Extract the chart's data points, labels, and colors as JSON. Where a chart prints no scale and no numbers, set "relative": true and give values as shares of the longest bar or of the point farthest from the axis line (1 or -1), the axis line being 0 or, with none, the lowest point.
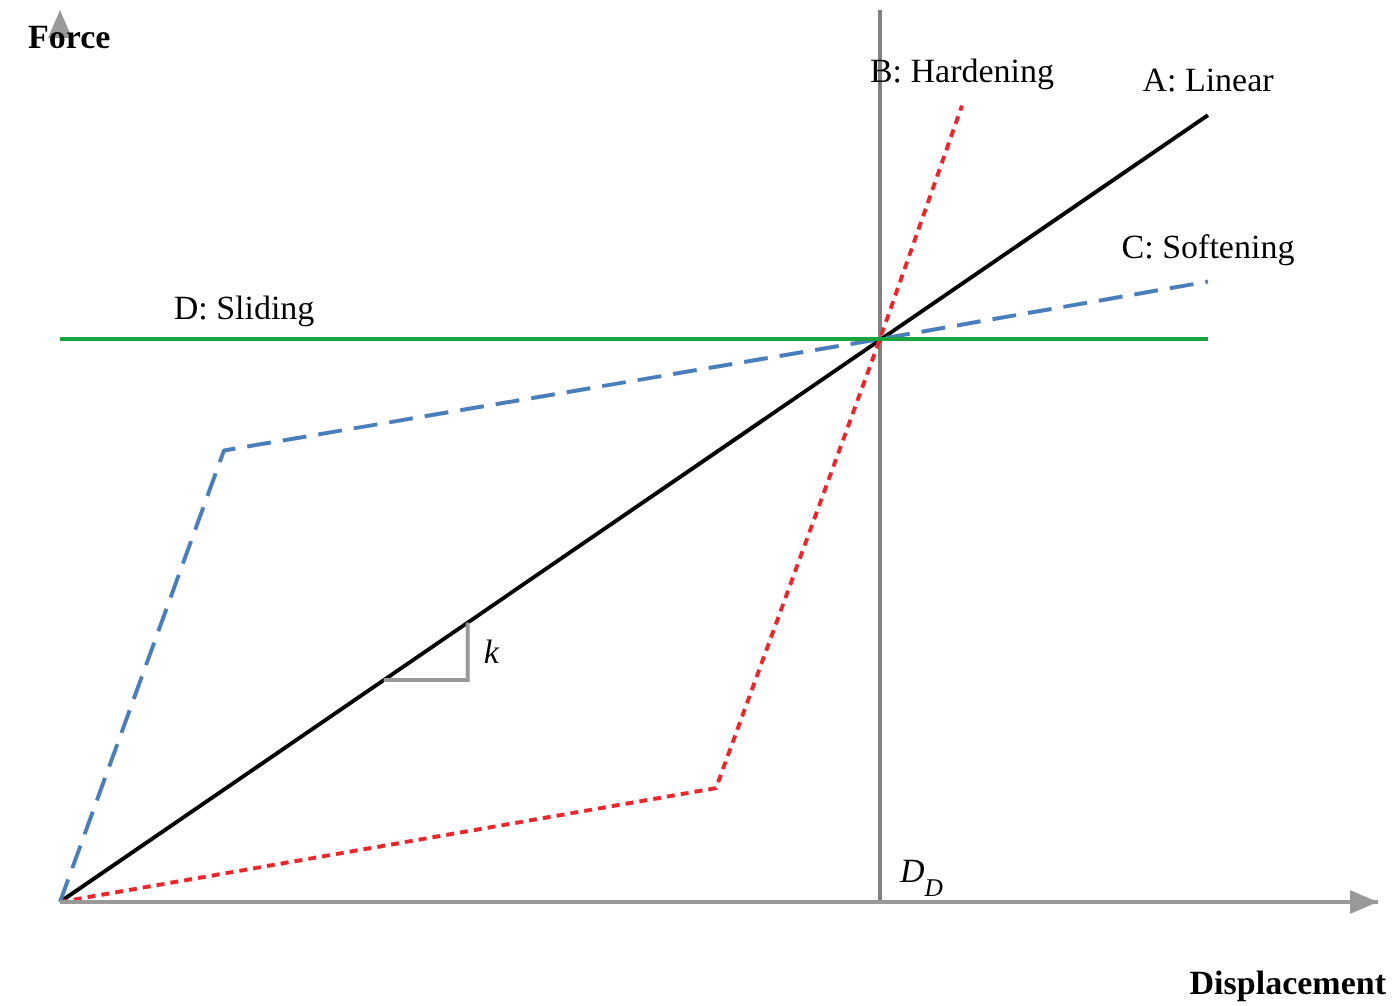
{
  "chart_data": {
    "type": "line",
    "relative": true,
    "xlabel": "Displacement",
    "ylabel": "Force",
    "annotations": [
      "k",
      "D$_{D}$"
    ],
    "categories": [
      null,
      null,
      null,
      null,
      null,
      null,
      null,
      null,
      null,
      null,
      null,
      null,
      null,
      null,
      null
    ],
    "series": [
      {
        "name": "A: Linear",
        "color": "#000000",
        "line_style": "solid",
        "values": [
          0,
          null,
          null,
          null,
          null,
          null,
          null,
          null,
          null,
          null,
          null,
          null,
          null,
          null,
          0.988
        ]
      },
      {
        "name": "B: Hardening",
        "color": "#e8262b",
        "line_style": "dotted",
        "values": [
          0,
          null,
          null,
          null,
          null,
          null,
          null,
          null,
          0.143,
          null,
          0.707,
          1,
          null,
          null,
          null
        ]
      },
      {
        "name": "C: Softening",
        "color": "#4a7ebb",
        "line_style": "dashed",
        "values": [
          0,
          null,
          0.567,
          null,
          null,
          null,
          null,
          null,
          null,
          null,
          0.707,
          null,
          null,
          null,
          0.779
        ]
      },
      {
        "name": "D: Sliding",
        "color": "#1aa33a",
        "line_style": "solid",
        "values": [
          0.707,
          null,
          null,
          null,
          null,
          null,
          null,
          null,
          null,
          null,
          null,
          null,
          null,
          null,
          0.707
        ]
      }
    ]
  }
}
